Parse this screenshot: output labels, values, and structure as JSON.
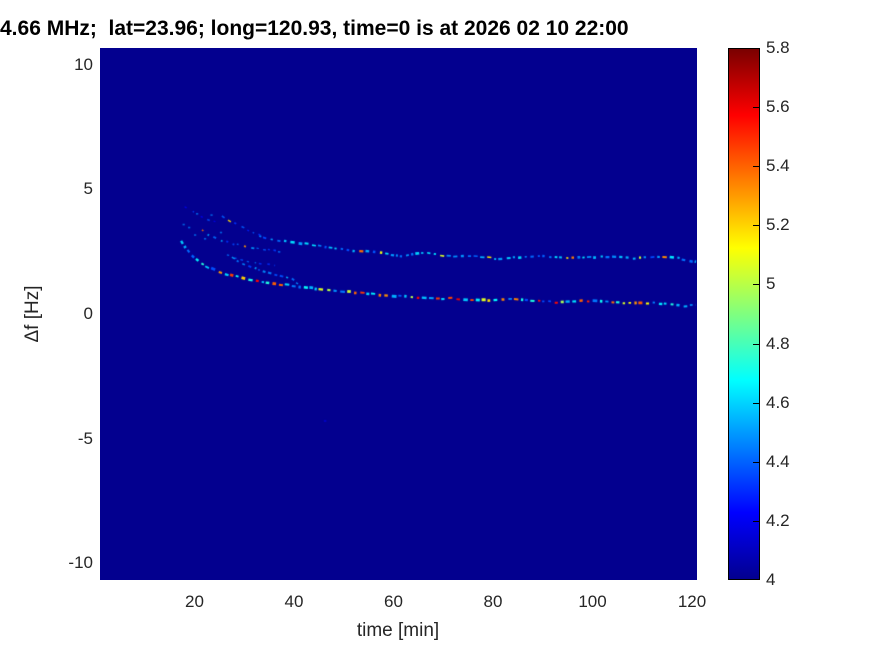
{
  "title": "4.66 MHz;  lat=23.96; long=120.93, time=0 is at 2026 02 10 22:00",
  "colors": {
    "figure_bg": "#ffffff",
    "plot_bg": "#03008f",
    "tick_text": "#262626",
    "title_text": "#000000",
    "colorbar_border": "#000000"
  },
  "chart_data": {
    "type": "heatmap",
    "title": "4.66 MHz;  lat=23.96; long=120.93, time=0 is at 2026 02 10 22:00",
    "xlabel": "time [min]",
    "ylabel": "Δf [Hz]",
    "xlim": [
      1,
      121
    ],
    "ylim": [
      -10.67,
      10.67
    ],
    "xticks": [
      20,
      40,
      60,
      80,
      100,
      120
    ],
    "yticks": [
      10,
      5,
      0,
      -5,
      -10
    ],
    "grid": false,
    "background_value": 4,
    "colorbar": {
      "position": "right",
      "min": 4,
      "max": 5.8,
      "step": 0.2,
      "ticks": [
        "5.8",
        "5.6",
        "5.4",
        "5.2",
        "5",
        "4.8",
        "4.6",
        "4.4",
        "4.2",
        "4"
      ],
      "colormap": "jet",
      "colormap_stops": [
        {
          "pct": 0,
          "color": "#03008f"
        },
        {
          "pct": 12.5,
          "color": "#0000ff"
        },
        {
          "pct": 37.5,
          "color": "#00ffff"
        },
        {
          "pct": 62.5,
          "color": "#ffff00"
        },
        {
          "pct": 87.5,
          "color": "#ff0000"
        },
        {
          "pct": 100,
          "color": "#7a0000"
        }
      ]
    },
    "traces": [
      {
        "name": "lower-doppler-trace",
        "points": [
          [
            17.3,
            2.95
          ],
          [
            18.2,
            2.65
          ],
          [
            19.2,
            2.4
          ],
          [
            20.3,
            2.2
          ],
          [
            21.5,
            2.0
          ],
          [
            23,
            1.85
          ],
          [
            24.5,
            1.72
          ],
          [
            26.5,
            1.6
          ],
          [
            28.5,
            1.5
          ],
          [
            30.5,
            1.4
          ],
          [
            32.5,
            1.32
          ],
          [
            34.5,
            1.26
          ],
          [
            37,
            1.2
          ],
          [
            41,
            1.1
          ],
          [
            45,
            1.0
          ],
          [
            49,
            0.92
          ],
          [
            53,
            0.85
          ],
          [
            57,
            0.78
          ],
          [
            61,
            0.72
          ],
          [
            65,
            0.65
          ],
          [
            69,
            0.6
          ],
          [
            72,
            0.63
          ],
          [
            75,
            0.58
          ],
          [
            78,
            0.54
          ],
          [
            81,
            0.57
          ],
          [
            84,
            0.6
          ],
          [
            87,
            0.55
          ],
          [
            90,
            0.5
          ],
          [
            93,
            0.47
          ],
          [
            96,
            0.5
          ],
          [
            99,
            0.52
          ],
          [
            102,
            0.49
          ],
          [
            105,
            0.45
          ],
          [
            108,
            0.43
          ],
          [
            111,
            0.45
          ],
          [
            114,
            0.41
          ],
          [
            116,
            0.36
          ],
          [
            118,
            0.32
          ],
          [
            120.8,
            0.36
          ]
        ],
        "style": {
          "width": 2.2,
          "dash": 3,
          "gap": 2.4,
          "base": 4.55,
          "spread": 0.4,
          "warm_chance": 0.34,
          "warm_min": 4.95,
          "warm_max": 5.65,
          "alpha": 1,
          "seed": 11
        }
      },
      {
        "name": "upper-doppler-trace",
        "points": [
          [
            33,
            3.12
          ],
          [
            35,
            3.02
          ],
          [
            37,
            2.95
          ],
          [
            40,
            2.88
          ],
          [
            43,
            2.8
          ],
          [
            46,
            2.7
          ],
          [
            49,
            2.62
          ],
          [
            52,
            2.55
          ],
          [
            55,
            2.5
          ],
          [
            58,
            2.42
          ],
          [
            60,
            2.36
          ],
          [
            62,
            2.32
          ],
          [
            64,
            2.42
          ],
          [
            66,
            2.47
          ],
          [
            68,
            2.4
          ],
          [
            70,
            2.33
          ],
          [
            72,
            2.3
          ],
          [
            75,
            2.33
          ],
          [
            78,
            2.3
          ],
          [
            81,
            2.22
          ],
          [
            84,
            2.26
          ],
          [
            87,
            2.3
          ],
          [
            90,
            2.33
          ],
          [
            93,
            2.28
          ],
          [
            96,
            2.25
          ],
          [
            99,
            2.28
          ],
          [
            102,
            2.3
          ],
          [
            105,
            2.28
          ],
          [
            108,
            2.24
          ],
          [
            111,
            2.27
          ],
          [
            113,
            2.32
          ],
          [
            115,
            2.3
          ],
          [
            117,
            2.25
          ],
          [
            119,
            2.16
          ],
          [
            120.8,
            2.08
          ]
        ],
        "style": {
          "width": 2,
          "dash": 2.8,
          "gap": 2.6,
          "base": 4.5,
          "spread": 0.3,
          "warm_chance": 0.13,
          "warm_min": 4.95,
          "warm_max": 5.5,
          "alpha": 1,
          "seed": 23
        }
      },
      {
        "name": "branch-trace-upper-left",
        "points": [
          [
            18,
            4.3
          ],
          [
            19.5,
            4.12
          ],
          [
            21,
            3.95
          ],
          [
            22.6,
            3.8
          ],
          [
            24.2,
            3.68
          ]
        ],
        "style": {
          "width": 1.3,
          "dash": 1.8,
          "gap": 4.5,
          "base": 4.3,
          "spread": 0.2,
          "warm_chance": 0.04,
          "warm_min": 4.9,
          "warm_max": 5.2,
          "alpha": 0.85,
          "seed": 31
        }
      },
      {
        "name": "branch-trace-high",
        "points": [
          [
            25.5,
            3.95
          ],
          [
            27,
            3.75
          ],
          [
            28.6,
            3.58
          ],
          [
            30.2,
            3.42
          ],
          [
            31.8,
            3.28
          ],
          [
            33.2,
            3.15
          ]
        ],
        "style": {
          "width": 1.5,
          "dash": 2.2,
          "gap": 3.4,
          "base": 4.38,
          "spread": 0.22,
          "warm_chance": 0.08,
          "warm_min": 4.9,
          "warm_max": 5.3,
          "alpha": 0.9,
          "seed": 41
        }
      },
      {
        "name": "branch-trace-mid",
        "points": [
          [
            21.5,
            3.35
          ],
          [
            23,
            3.15
          ],
          [
            24.6,
            3.0
          ],
          [
            26.2,
            2.9
          ],
          [
            28,
            2.8
          ],
          [
            30,
            2.72
          ],
          [
            32,
            2.65
          ],
          [
            34,
            2.6
          ],
          [
            36,
            2.54
          ],
          [
            37.8,
            2.5
          ]
        ],
        "style": {
          "width": 1.5,
          "dash": 2.2,
          "gap": 3.2,
          "base": 4.4,
          "spread": 0.25,
          "warm_chance": 0.1,
          "warm_min": 4.9,
          "warm_max": 5.4,
          "alpha": 0.9,
          "seed": 53
        }
      },
      {
        "name": "branch-trace-short",
        "points": [
          [
            26.5,
            2.35
          ],
          [
            28.2,
            2.25
          ],
          [
            30.2,
            2.15
          ],
          [
            32.2,
            2.07
          ],
          [
            34.2,
            2.0
          ],
          [
            36.2,
            1.95
          ]
        ],
        "style": {
          "width": 1.4,
          "dash": 2,
          "gap": 3.6,
          "base": 4.38,
          "spread": 0.2,
          "warm_chance": 0.06,
          "warm_min": 4.9,
          "warm_max": 5.3,
          "alpha": 0.85,
          "seed": 61
        }
      },
      {
        "name": "branch-trace-converging",
        "points": [
          [
            27.5,
            2.28
          ],
          [
            29.5,
            2.05
          ],
          [
            31.5,
            1.88
          ],
          [
            33.5,
            1.72
          ],
          [
            35.5,
            1.6
          ],
          [
            37.5,
            1.5
          ],
          [
            39.5,
            1.42
          ],
          [
            41.5,
            1.12
          ]
        ],
        "style": {
          "width": 1.6,
          "dash": 2.4,
          "gap": 3,
          "base": 4.45,
          "spread": 0.3,
          "warm_chance": 0.14,
          "warm_min": 4.95,
          "warm_max": 5.6,
          "alpha": 0.95,
          "seed": 71
        }
      }
    ],
    "scatter_dots": [
      [
        17.6,
        3.62
      ],
      [
        18.7,
        3.5
      ],
      [
        20.3,
        4.05
      ],
      [
        19.9,
        3.2
      ],
      [
        21.9,
        3.05
      ],
      [
        23.2,
        4.0
      ],
      [
        25.1,
        3.3
      ]
    ],
    "faint_specks": [
      [
        46,
        -4.25
      ]
    ]
  }
}
